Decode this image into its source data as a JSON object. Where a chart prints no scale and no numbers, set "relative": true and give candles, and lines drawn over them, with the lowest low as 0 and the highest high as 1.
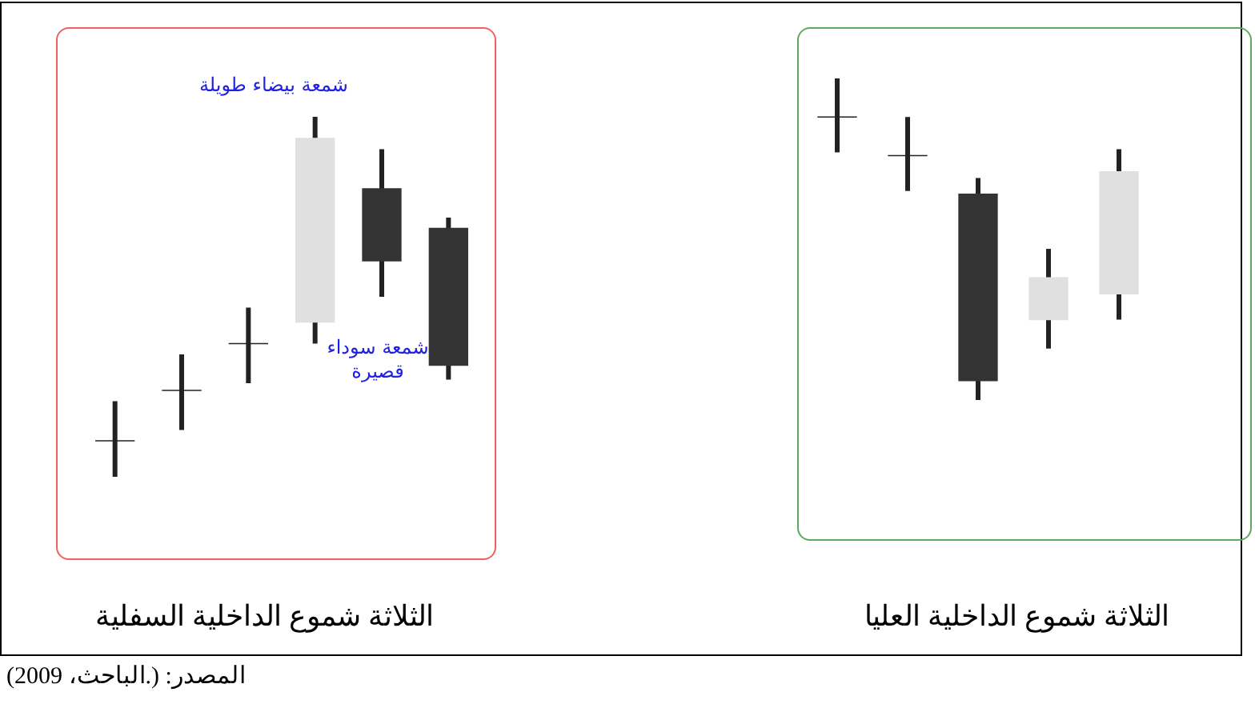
{
  "chart_data": [
    {
      "type": "candlestick",
      "title": "الثلاثة شموع الداخلية السفلية",
      "relative": true,
      "categories": [
        null,
        null,
        null,
        null,
        null,
        null
      ],
      "ohlc": [
        [
          0.1,
          0.21,
          0,
          0.1
        ],
        [
          0.24,
          0.34,
          0.13,
          0.24
        ],
        [
          0.37,
          0.47,
          0.26,
          0.37
        ],
        [
          0.43,
          1,
          0.37,
          0.94
        ],
        [
          0.8,
          0.91,
          0.5,
          0.6
        ],
        [
          0.69,
          0.72,
          0.27,
          0.31
        ]
      ],
      "colors": [
        "#222222",
        "#222222",
        "#222222",
        "#e0e0e0",
        "#333333",
        "#333333"
      ],
      "annotations": [
        "شمعة بيضاء طويلة",
        "شمعة سوداء قصيرة",
        "المصدر: (.الباحث، 2009)"
      ]
    },
    {
      "type": "candlestick",
      "title": "الثلاثة شموع الداخلية العليا",
      "relative": true,
      "categories": [
        null,
        null,
        null,
        null,
        null
      ],
      "ohlc": [
        [
          0.88,
          1,
          0.77,
          0.88
        ],
        [
          0.76,
          0.88,
          0.65,
          0.76
        ],
        [
          0.64,
          0.69,
          0,
          0.06
        ],
        [
          0.25,
          0.47,
          0.16,
          0.38
        ],
        [
          0.33,
          0.78,
          0.25,
          0.71
        ]
      ],
      "colors": [
        "#222222",
        "#222222",
        "#333333",
        "#e0e0e0",
        "#e0e0e0"
      ]
    }
  ]
}
